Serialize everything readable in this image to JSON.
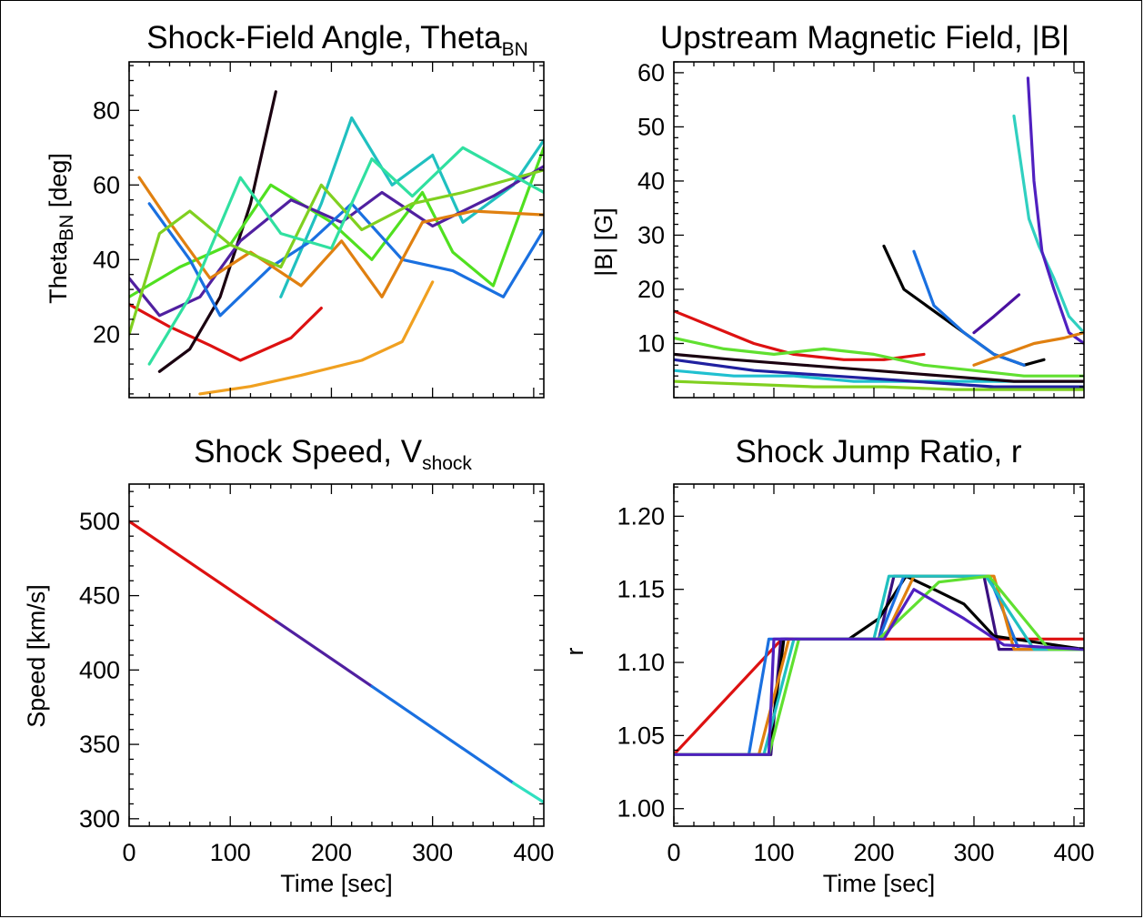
{
  "chart_data": [
    {
      "id": "theta",
      "type": "line",
      "title": "Shock-Field Angle, Theta",
      "title_sub": "BN",
      "xlabel": "",
      "ylabel": "Theta",
      "ylabel_sub": "BN",
      "ylabel_unit": " [deg]",
      "xlim": [
        0,
        410
      ],
      "ylim": [
        3,
        93
      ],
      "xticks": [
        0,
        100,
        200,
        300,
        400
      ],
      "yticks": [
        20,
        40,
        60,
        80
      ],
      "yticklabels": [
        "20",
        "40",
        "60",
        "80"
      ],
      "xticklabels": [],
      "grid": false,
      "series": [
        {
          "color": "#dd1111",
          "x": [
            0,
            40,
            80,
            110,
            160,
            190
          ],
          "y": [
            28,
            22,
            17,
            13,
            19,
            27
          ]
        },
        {
          "color": "#1a0010",
          "x": [
            30,
            60,
            90,
            120,
            145
          ],
          "y": [
            10,
            16,
            30,
            55,
            85
          ]
        },
        {
          "color": "#f0a020",
          "x": [
            70,
            120,
            170,
            230,
            270,
            300
          ],
          "y": [
            4,
            6,
            9,
            13,
            18,
            34
          ]
        },
        {
          "color": "#20c0c0",
          "x": [
            150,
            190,
            220,
            260,
            300,
            330,
            380,
            410
          ],
          "y": [
            30,
            55,
            78,
            60,
            68,
            50,
            60,
            72
          ]
        },
        {
          "color": "#50e020",
          "x": [
            0,
            50,
            100,
            140,
            200,
            240,
            290,
            320,
            360,
            410
          ],
          "y": [
            30,
            38,
            44,
            60,
            50,
            40,
            58,
            42,
            33,
            70
          ]
        },
        {
          "color": "#5020a0",
          "x": [
            0,
            30,
            70,
            110,
            160,
            210,
            250,
            300,
            360,
            410
          ],
          "y": [
            35,
            25,
            30,
            45,
            56,
            50,
            58,
            49,
            57,
            65
          ]
        },
        {
          "color": "#1a70e0",
          "x": [
            20,
            60,
            90,
            140,
            180,
            220,
            270,
            320,
            370,
            410
          ],
          "y": [
            55,
            40,
            25,
            38,
            45,
            55,
            40,
            37,
            30,
            48
          ]
        },
        {
          "color": "#e08010",
          "x": [
            10,
            40,
            80,
            120,
            170,
            210,
            250,
            290,
            340,
            410
          ],
          "y": [
            62,
            50,
            35,
            42,
            33,
            45,
            30,
            50,
            53,
            52
          ]
        },
        {
          "color": "#80d020",
          "x": [
            0,
            30,
            60,
            100,
            150,
            190,
            230,
            280,
            330,
            410
          ],
          "y": [
            20,
            47,
            53,
            44,
            38,
            60,
            48,
            55,
            58,
            64
          ]
        },
        {
          "color": "#30e0a0",
          "x": [
            20,
            60,
            110,
            150,
            200,
            240,
            280,
            330,
            390,
            410
          ],
          "y": [
            12,
            30,
            62,
            47,
            43,
            67,
            57,
            70,
            61,
            58
          ]
        }
      ]
    },
    {
      "id": "bfield",
      "type": "line",
      "title": "Upstream Magnetic Field, |B|",
      "title_sub": "",
      "xlabel": "",
      "ylabel": "|B| [G]",
      "ylabel_sub": "",
      "ylabel_unit": "",
      "xlim": [
        0,
        410
      ],
      "ylim": [
        0,
        62
      ],
      "xticks": [
        0,
        100,
        200,
        300,
        400
      ],
      "yticks": [
        10,
        20,
        30,
        40,
        50,
        60
      ],
      "yticklabels": [
        "10",
        "20",
        "30",
        "40",
        "50",
        "60"
      ],
      "xticklabels": [],
      "grid": false,
      "series": [
        {
          "color": "#dd1111",
          "x": [
            0,
            40,
            80,
            120,
            170,
            210,
            250
          ],
          "y": [
            16,
            13,
            10,
            8,
            7,
            7,
            8
          ]
        },
        {
          "color": "#000000",
          "x": [
            210,
            230,
            260,
            290,
            320,
            350,
            370
          ],
          "y": [
            28,
            20,
            16,
            12,
            8,
            6,
            7
          ]
        },
        {
          "color": "#1a70e0",
          "x": [
            240,
            260,
            290,
            320,
            350
          ],
          "y": [
            27,
            17,
            12,
            8,
            6
          ]
        },
        {
          "color": "#30d0c0",
          "x": [
            340,
            355,
            365,
            380,
            395,
            410
          ],
          "y": [
            52,
            33,
            28,
            22,
            15,
            12
          ]
        },
        {
          "color": "#5020c0",
          "x": [
            354,
            360,
            368,
            380,
            395,
            410
          ],
          "y": [
            59,
            40,
            27,
            20,
            12,
            10
          ]
        },
        {
          "color": "#e08010",
          "x": [
            300,
            330,
            360,
            390,
            410
          ],
          "y": [
            6,
            8,
            10,
            11,
            12
          ]
        },
        {
          "color": "#4a10a0",
          "x": [
            300,
            320,
            345
          ],
          "y": [
            12,
            15,
            19
          ]
        },
        {
          "color": "#60e030",
          "x": [
            0,
            50,
            100,
            150,
            200,
            250,
            300,
            350,
            410
          ],
          "y": [
            11,
            9,
            8,
            9,
            8,
            6,
            5,
            4,
            4
          ]
        },
        {
          "color": "#20c0d0",
          "x": [
            0,
            60,
            120,
            180,
            240,
            300,
            360,
            410
          ],
          "y": [
            5,
            4,
            4,
            3,
            3,
            3,
            3,
            3
          ]
        },
        {
          "color": "#2020a0",
          "x": [
            0,
            80,
            160,
            240,
            320,
            410
          ],
          "y": [
            7,
            5,
            4,
            3,
            2,
            2
          ]
        },
        {
          "color": "#80d020",
          "x": [
            0,
            70,
            140,
            210,
            280,
            350,
            410
          ],
          "y": [
            3,
            2.5,
            2,
            2,
            1.5,
            1.5,
            1.5
          ]
        },
        {
          "color": "#1a0010",
          "x": [
            0,
            60,
            130,
            200,
            270,
            340,
            410
          ],
          "y": [
            8,
            7,
            6,
            5,
            4,
            3,
            3
          ]
        }
      ]
    },
    {
      "id": "speed",
      "type": "line",
      "title": "Shock Speed, V",
      "title_sub": "shock",
      "xlabel": "Time [sec]",
      "ylabel": "Speed [km/s]",
      "ylabel_sub": "",
      "ylabel_unit": "",
      "xlim": [
        0,
        410
      ],
      "ylim": [
        295,
        525
      ],
      "xticks": [
        0,
        100,
        200,
        300,
        400
      ],
      "yticks": [
        300,
        350,
        400,
        450,
        500
      ],
      "yticklabels": [
        "300",
        "350",
        "400",
        "450",
        "500"
      ],
      "xticklabels": [
        "0",
        "100",
        "200",
        "300",
        "400"
      ],
      "grid": false,
      "series": [
        {
          "color": "#dd1111",
          "x": [
            0,
            145
          ],
          "y": [
            500,
            433
          ]
        },
        {
          "color": "#5020a0",
          "x": [
            145,
            240
          ],
          "y": [
            433,
            389
          ]
        },
        {
          "color": "#1a70e0",
          "x": [
            240,
            380
          ],
          "y": [
            389,
            324
          ]
        },
        {
          "color": "#30e0c0",
          "x": [
            380,
            410
          ],
          "y": [
            324,
            311
          ]
        }
      ]
    },
    {
      "id": "jump",
      "type": "line",
      "title": "Shock Jump Ratio, r",
      "title_sub": "",
      "xlabel": "Time [sec]",
      "ylabel": "r",
      "ylabel_sub": "",
      "ylabel_unit": "",
      "xlim": [
        0,
        410
      ],
      "ylim": [
        0.988,
        1.222
      ],
      "xticks": [
        0,
        100,
        200,
        300,
        400
      ],
      "yticks": [
        1.0,
        1.05,
        1.1,
        1.15,
        1.2
      ],
      "yticklabels": [
        "1.00",
        "1.05",
        "1.10",
        "1.15",
        "1.20"
      ],
      "xticklabels": [
        "0",
        "100",
        "200",
        "300",
        "400"
      ],
      "grid": false,
      "series": [
        {
          "color": "#dd1111",
          "x": [
            0,
            108,
            410
          ],
          "y": [
            1.037,
            1.116,
            1.116
          ]
        },
        {
          "color": "#3a1080",
          "x": [
            0,
            97,
            107,
            205,
            220,
            310,
            325,
            410
          ],
          "y": [
            1.037,
            1.037,
            1.116,
            1.116,
            1.159,
            1.159,
            1.109,
            1.109
          ]
        },
        {
          "color": "#000000",
          "x": [
            0,
            95,
            110,
            150,
            175,
            205,
            232,
            260,
            290,
            320,
            410
          ],
          "y": [
            1.037,
            1.037,
            1.116,
            1.116,
            1.116,
            1.13,
            1.159,
            1.15,
            1.14,
            1.118,
            1.109
          ]
        },
        {
          "color": "#1a70e0",
          "x": [
            0,
            75,
            95,
            205,
            230,
            315,
            345,
            410
          ],
          "y": [
            1.037,
            1.037,
            1.116,
            1.116,
            1.159,
            1.159,
            1.109,
            1.109
          ]
        },
        {
          "color": "#e08010",
          "x": [
            0,
            85,
            115,
            210,
            240,
            320,
            340,
            410
          ],
          "y": [
            1.037,
            1.037,
            1.116,
            1.116,
            1.159,
            1.159,
            1.109,
            1.109
          ]
        },
        {
          "color": "#20c0c0",
          "x": [
            0,
            90,
            120,
            200,
            215,
            312,
            360,
            410
          ],
          "y": [
            1.037,
            1.037,
            1.116,
            1.116,
            1.159,
            1.159,
            1.109,
            1.109
          ]
        },
        {
          "color": "#60e030",
          "x": [
            0,
            95,
            125,
            205,
            265,
            315,
            375,
            410
          ],
          "y": [
            1.037,
            1.037,
            1.116,
            1.116,
            1.155,
            1.159,
            1.109,
            1.109
          ]
        },
        {
          "color": "#5020c0",
          "x": [
            0,
            95,
            100,
            210,
            240,
            290,
            330,
            410
          ],
          "y": [
            1.037,
            1.037,
            1.116,
            1.116,
            1.15,
            1.13,
            1.112,
            1.109
          ]
        }
      ]
    }
  ]
}
